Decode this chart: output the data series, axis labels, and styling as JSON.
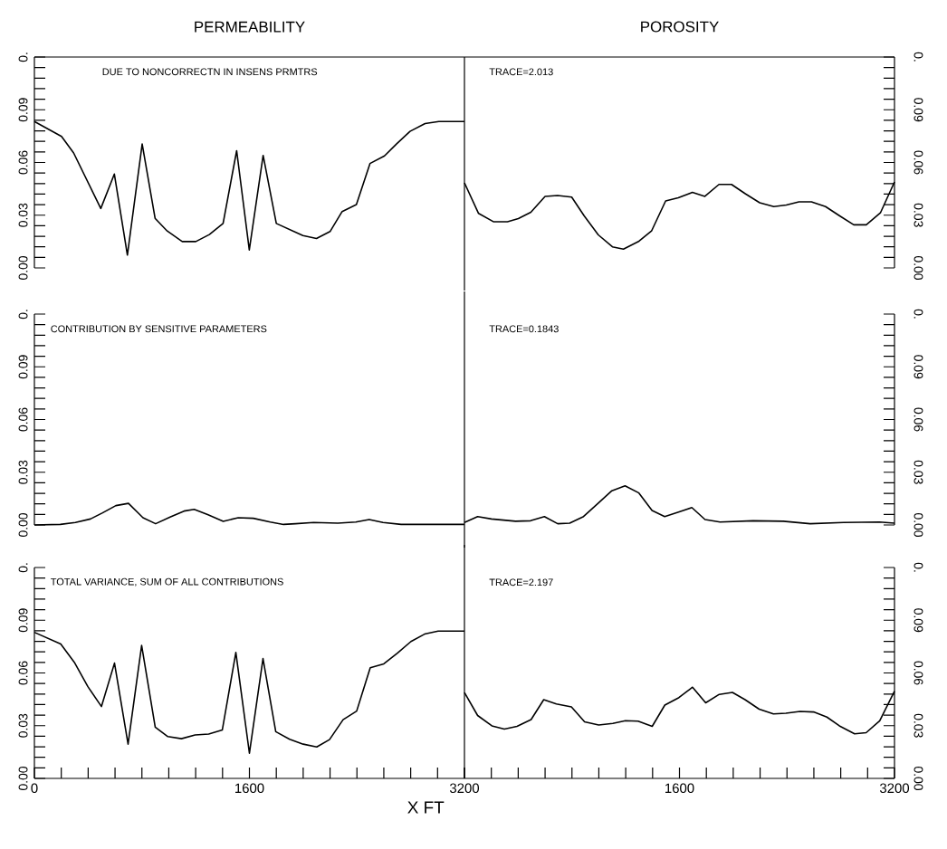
{
  "chart_data": [
    {
      "type": "line",
      "title": "PERMEABILITY",
      "annotations": [
        "DUE TO NONCORRECTN IN INSENS PRMTRS"
      ],
      "tick_labels": "y",
      "color": "#000000",
      "xlim": [
        0,
        3200
      ],
      "ylim": [
        0,
        0.12
      ],
      "yticks": [
        {
          "value": 0,
          "label": "0.00"
        },
        {
          "value": 0.006,
          "label": null
        },
        {
          "value": 0.012,
          "label": null
        },
        {
          "value": 0.018,
          "label": null
        },
        {
          "value": 0.024,
          "label": null
        },
        {
          "value": 0.03,
          "label": "0.03"
        },
        {
          "value": 0.036,
          "label": null
        },
        {
          "value": 0.042,
          "label": null
        },
        {
          "value": 0.048,
          "label": null
        },
        {
          "value": 0.054,
          "label": null
        },
        {
          "value": 0.06,
          "label": "0.06"
        },
        {
          "value": 0.066,
          "label": null
        },
        {
          "value": 0.072,
          "label": null
        },
        {
          "value": 0.078,
          "label": null
        },
        {
          "value": 0.084,
          "label": null
        },
        {
          "value": 0.09,
          "label": "0.09"
        },
        {
          "value": 0.096,
          "label": null
        },
        {
          "value": 0.102,
          "label": null
        },
        {
          "value": 0.108,
          "label": null
        },
        {
          "value": 0.114,
          "label": null
        },
        {
          "value": 0.12,
          "label": "0."
        }
      ],
      "x": [
        0,
        202,
        292,
        494,
        595,
        692,
        802,
        898,
        988,
        1100,
        1201,
        1302,
        1404,
        1505,
        1599,
        1702,
        1800,
        1998,
        2099,
        2200,
        2290,
        2396,
        2497,
        2605,
        2694,
        2795,
        2907,
        3009,
        3200
      ],
      "values": [
        0.0833,
        0.0748,
        0.0654,
        0.0338,
        0.0534,
        0.0073,
        0.0705,
        0.0282,
        0.021,
        0.015,
        0.015,
        0.019,
        0.0253,
        0.0667,
        0.0102,
        0.064,
        0.0253,
        0.0184,
        0.0167,
        0.0207,
        0.0321,
        0.036,
        0.0594,
        0.0637,
        0.0705,
        0.0777,
        0.0821,
        0.0833,
        0.0833
      ]
    },
    {
      "type": "line",
      "title": "POROSITY",
      "annotations": [
        "TRACE=2.013"
      ],
      "tick_labels": "y",
      "color": "#000000",
      "xlim": [
        0,
        3200
      ],
      "ylim": [
        0,
        0.12
      ],
      "yticks": [
        {
          "value": 0,
          "label": "0.00"
        },
        {
          "value": 0.006,
          "label": null
        },
        {
          "value": 0.012,
          "label": null
        },
        {
          "value": 0.018,
          "label": null
        },
        {
          "value": 0.024,
          "label": null
        },
        {
          "value": 0.03,
          "label": "0.03"
        },
        {
          "value": 0.036,
          "label": null
        },
        {
          "value": 0.042,
          "label": null
        },
        {
          "value": 0.048,
          "label": null
        },
        {
          "value": 0.054,
          "label": null
        },
        {
          "value": 0.06,
          "label": "0.06"
        },
        {
          "value": 0.066,
          "label": null
        },
        {
          "value": 0.072,
          "label": null
        },
        {
          "value": 0.078,
          "label": null
        },
        {
          "value": 0.084,
          "label": null
        },
        {
          "value": 0.09,
          "label": "0.09"
        },
        {
          "value": 0.096,
          "label": null
        },
        {
          "value": 0.102,
          "label": null
        },
        {
          "value": 0.108,
          "label": null
        },
        {
          "value": 0.114,
          "label": null
        },
        {
          "value": 0.12,
          "label": "0."
        }
      ],
      "x": [
        0,
        105,
        215,
        320,
        401,
        494,
        600,
        693,
        798,
        891,
        996,
        1101,
        1183,
        1299,
        1392,
        1497,
        1591,
        1696,
        1789,
        1894,
        1987,
        2092,
        2197,
        2302,
        2395,
        2489,
        2582,
        2687,
        2792,
        2897,
        2990,
        3095,
        3200
      ],
      "values": [
        0.0484,
        0.031,
        0.0263,
        0.0263,
        0.0281,
        0.0317,
        0.0407,
        0.0412,
        0.0403,
        0.0296,
        0.0188,
        0.012,
        0.0107,
        0.0152,
        0.021,
        0.0381,
        0.0399,
        0.043,
        0.0407,
        0.0475,
        0.0475,
        0.0421,
        0.0371,
        0.0349,
        0.0358,
        0.0376,
        0.0376,
        0.0349,
        0.0296,
        0.0245,
        0.0245,
        0.0313,
        0.0489
      ]
    },
    {
      "type": "line",
      "annotations": [
        "CONTRIBUTION BY SENSITIVE PARAMETERS"
      ],
      "tick_labels": "y",
      "color": "#000000",
      "xlim": [
        0,
        3200
      ],
      "ylim": [
        0,
        0.12
      ],
      "yticks": [
        {
          "value": 0,
          "label": "0.00"
        },
        {
          "value": 0.006,
          "label": null
        },
        {
          "value": 0.012,
          "label": null
        },
        {
          "value": 0.018,
          "label": null
        },
        {
          "value": 0.024,
          "label": null
        },
        {
          "value": 0.03,
          "label": "0.03"
        },
        {
          "value": 0.036,
          "label": null
        },
        {
          "value": 0.042,
          "label": null
        },
        {
          "value": 0.048,
          "label": null
        },
        {
          "value": 0.054,
          "label": null
        },
        {
          "value": 0.06,
          "label": "0.06"
        },
        {
          "value": 0.066,
          "label": null
        },
        {
          "value": 0.072,
          "label": null
        },
        {
          "value": 0.078,
          "label": null
        },
        {
          "value": 0.084,
          "label": null
        },
        {
          "value": 0.09,
          "label": "0.09"
        },
        {
          "value": 0.096,
          "label": null
        },
        {
          "value": 0.102,
          "label": null
        },
        {
          "value": 0.108,
          "label": null
        },
        {
          "value": 0.114,
          "label": null
        },
        {
          "value": 0.12,
          "label": "0."
        }
      ],
      "x": [
        0,
        193,
        305,
        417,
        507,
        606,
        700,
        808,
        902,
        1010,
        1113,
        1189,
        1293,
        1405,
        1517,
        1629,
        1755,
        1854,
        1943,
        2078,
        2258,
        2392,
        2491,
        2594,
        2729,
        2886,
        3200
      ],
      "values": [
        0,
        0.0003,
        0.0014,
        0.0034,
        0.0069,
        0.011,
        0.0123,
        0.0041,
        0.0007,
        0.0045,
        0.0079,
        0.0089,
        0.0058,
        0.0021,
        0.0041,
        0.0038,
        0.0017,
        0.0003,
        0.0007,
        0.0014,
        0.001,
        0.0017,
        0.0031,
        0.0014,
        0.0003,
        0.0003,
        0.0003
      ]
    },
    {
      "type": "line",
      "annotations": [
        "TRACE=0.1843"
      ],
      "tick_labels": "y",
      "color": "#000000",
      "xlim": [
        0,
        3200
      ],
      "ylim": [
        0,
        0.12
      ],
      "yticks": [
        {
          "value": 0,
          "label": "0.00"
        },
        {
          "value": 0.006,
          "label": null
        },
        {
          "value": 0.012,
          "label": null
        },
        {
          "value": 0.018,
          "label": null
        },
        {
          "value": 0.024,
          "label": null
        },
        {
          "value": 0.03,
          "label": "0.03"
        },
        {
          "value": 0.036,
          "label": null
        },
        {
          "value": 0.042,
          "label": null
        },
        {
          "value": 0.048,
          "label": null
        },
        {
          "value": 0.054,
          "label": null
        },
        {
          "value": 0.06,
          "label": "0.06"
        },
        {
          "value": 0.066,
          "label": null
        },
        {
          "value": 0.072,
          "label": null
        },
        {
          "value": 0.078,
          "label": null
        },
        {
          "value": 0.084,
          "label": null
        },
        {
          "value": 0.09,
          "label": "0.09"
        },
        {
          "value": 0.096,
          "label": null
        },
        {
          "value": 0.102,
          "label": null
        },
        {
          "value": 0.108,
          "label": null
        },
        {
          "value": 0.114,
          "label": null
        },
        {
          "value": 0.12,
          "label": "0."
        }
      ],
      "x": [
        0,
        98,
        201,
        380,
        492,
        595,
        694,
        783,
        886,
        994,
        1097,
        1195,
        1298,
        1396,
        1490,
        1598,
        1692,
        1790,
        1902,
        2148,
        2372,
        2573,
        2820,
        3088,
        3200
      ],
      "values": [
        0.0014,
        0.0048,
        0.0034,
        0.0021,
        0.0024,
        0.0048,
        0.0007,
        0.001,
        0.0048,
        0.0123,
        0.0195,
        0.0223,
        0.0182,
        0.0082,
        0.0048,
        0.0075,
        0.0099,
        0.0031,
        0.0017,
        0.0024,
        0.0021,
        0.0007,
        0.0014,
        0.0017,
        0.001
      ]
    },
    {
      "type": "line",
      "annotations": [
        "TOTAL VARIANCE, SUM OF ALL CONTRIBUTIONS"
      ],
      "xlabel": "X FT",
      "color": "#000000",
      "xlim": [
        0,
        3200
      ],
      "ylim": [
        0,
        0.12
      ],
      "xticks": [
        {
          "value": 0,
          "label": "0"
        },
        {
          "value": 200,
          "label": null
        },
        {
          "value": 400,
          "label": null
        },
        {
          "value": 600,
          "label": null
        },
        {
          "value": 800,
          "label": null
        },
        {
          "value": 1000,
          "label": null
        },
        {
          "value": 1200,
          "label": null
        },
        {
          "value": 1400,
          "label": null
        },
        {
          "value": 1600,
          "label": "1600"
        },
        {
          "value": 1800,
          "label": null
        },
        {
          "value": 2000,
          "label": null
        },
        {
          "value": 2200,
          "label": null
        },
        {
          "value": 2400,
          "label": null
        },
        {
          "value": 2600,
          "label": null
        },
        {
          "value": 2800,
          "label": null
        },
        {
          "value": 3000,
          "label": null
        },
        {
          "value": 3200,
          "label": "3200"
        }
      ],
      "yticks": [
        {
          "value": 0,
          "label": "0.00"
        },
        {
          "value": 0.006,
          "label": null
        },
        {
          "value": 0.012,
          "label": null
        },
        {
          "value": 0.018,
          "label": null
        },
        {
          "value": 0.024,
          "label": null
        },
        {
          "value": 0.03,
          "label": "0.03"
        },
        {
          "value": 0.036,
          "label": null
        },
        {
          "value": 0.042,
          "label": null
        },
        {
          "value": 0.048,
          "label": null
        },
        {
          "value": 0.054,
          "label": null
        },
        {
          "value": 0.06,
          "label": "0.06"
        },
        {
          "value": 0.066,
          "label": null
        },
        {
          "value": 0.072,
          "label": null
        },
        {
          "value": 0.078,
          "label": null
        },
        {
          "value": 0.084,
          "label": null
        },
        {
          "value": 0.09,
          "label": "0.09"
        },
        {
          "value": 0.096,
          "label": null
        },
        {
          "value": 0.102,
          "label": null
        },
        {
          "value": 0.108,
          "label": null
        },
        {
          "value": 0.114,
          "label": null
        },
        {
          "value": 0.12,
          "label": "0."
        }
      ],
      "x": [
        0,
        196,
        297,
        398,
        499,
        596,
        697,
        798,
        899,
        993,
        1094,
        1196,
        1297,
        1398,
        1499,
        1600,
        1701,
        1796,
        1899,
        2000,
        2101,
        2196,
        2297,
        2398,
        2499,
        2600,
        2701,
        2802,
        2903,
        3004,
        3200
      ],
      "values": [
        0.0831,
        0.0765,
        0.0661,
        0.0522,
        0.0409,
        0.0656,
        0.0195,
        0.0757,
        0.0292,
        0.0238,
        0.0226,
        0.0247,
        0.0252,
        0.0275,
        0.0717,
        0.0143,
        0.0682,
        0.0266,
        0.0223,
        0.0195,
        0.0179,
        0.0221,
        0.0334,
        0.0383,
        0.063,
        0.0652,
        0.0713,
        0.0779,
        0.0821,
        0.0838,
        0.0838
      ]
    },
    {
      "type": "line",
      "annotations": [
        "TRACE=2.197"
      ],
      "color": "#000000",
      "xlim": [
        0,
        3200
      ],
      "ylim": [
        0,
        0.12
      ],
      "xticks": [
        {
          "value": 0,
          "label": null
        },
        {
          "value": 200,
          "label": null
        },
        {
          "value": 400,
          "label": null
        },
        {
          "value": 600,
          "label": null
        },
        {
          "value": 800,
          "label": null
        },
        {
          "value": 1000,
          "label": null
        },
        {
          "value": 1200,
          "label": null
        },
        {
          "value": 1400,
          "label": null
        },
        {
          "value": 1600,
          "label": "1600"
        },
        {
          "value": 1800,
          "label": null
        },
        {
          "value": 2000,
          "label": null
        },
        {
          "value": 2200,
          "label": null
        },
        {
          "value": 2400,
          "label": null
        },
        {
          "value": 2600,
          "label": null
        },
        {
          "value": 2800,
          "label": null
        },
        {
          "value": 3000,
          "label": null
        },
        {
          "value": 3200,
          "label": "3200"
        }
      ],
      "yticks": [
        {
          "value": 0,
          "label": "0.00"
        },
        {
          "value": 0.006,
          "label": null
        },
        {
          "value": 0.012,
          "label": null
        },
        {
          "value": 0.018,
          "label": null
        },
        {
          "value": 0.024,
          "label": null
        },
        {
          "value": 0.03,
          "label": "0.03"
        },
        {
          "value": 0.036,
          "label": null
        },
        {
          "value": 0.042,
          "label": null
        },
        {
          "value": 0.048,
          "label": null
        },
        {
          "value": 0.054,
          "label": null
        },
        {
          "value": 0.06,
          "label": "0.06"
        },
        {
          "value": 0.066,
          "label": null
        },
        {
          "value": 0.072,
          "label": null
        },
        {
          "value": 0.078,
          "label": null
        },
        {
          "value": 0.084,
          "label": null
        },
        {
          "value": 0.09,
          "label": "0.09"
        },
        {
          "value": 0.096,
          "label": null
        },
        {
          "value": 0.102,
          "label": null
        },
        {
          "value": 0.108,
          "label": null
        },
        {
          "value": 0.114,
          "label": null
        },
        {
          "value": 0.12,
          "label": "0."
        }
      ],
      "x": [
        0,
        98,
        204,
        297,
        391,
        496,
        590,
        684,
        796,
        894,
        999,
        1104,
        1198,
        1292,
        1397,
        1491,
        1596,
        1697,
        1795,
        1896,
        1994,
        2088,
        2193,
        2299,
        2392,
        2497,
        2598,
        2697,
        2790,
        2903,
        2989,
        3090,
        3200
      ],
      "values": [
        0.0489,
        0.0358,
        0.0299,
        0.0281,
        0.0296,
        0.0335,
        0.0448,
        0.0424,
        0.0407,
        0.0322,
        0.0304,
        0.0313,
        0.0328,
        0.0326,
        0.0296,
        0.0417,
        0.046,
        0.0519,
        0.043,
        0.0478,
        0.0489,
        0.0448,
        0.0394,
        0.0367,
        0.0371,
        0.0381,
        0.0378,
        0.0349,
        0.0299,
        0.0254,
        0.026,
        0.0328,
        0.0496
      ]
    }
  ]
}
